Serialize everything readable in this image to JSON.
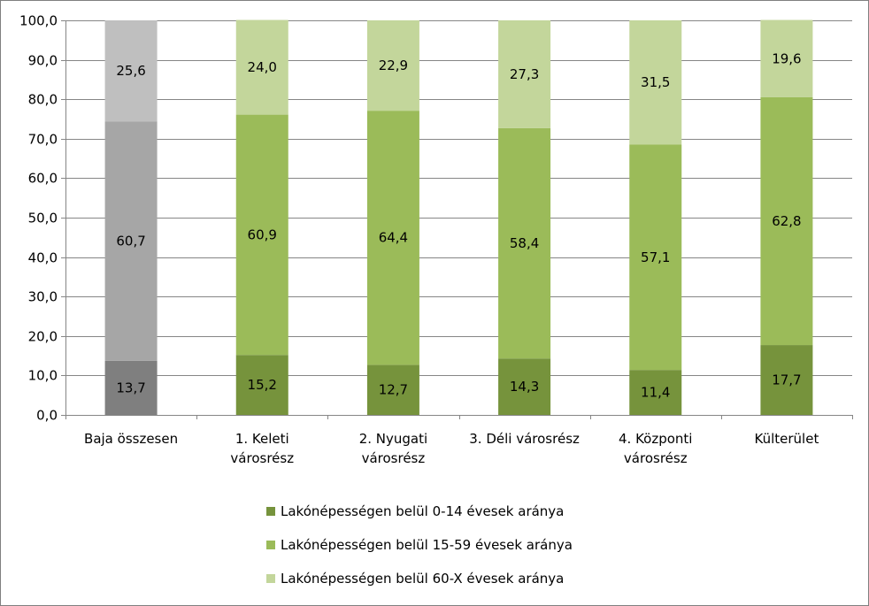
{
  "chart_data": {
    "type": "bar",
    "stacked": true,
    "title": "",
    "xlabel": "",
    "ylabel": "",
    "ylim": [
      0,
      100
    ],
    "y_ticks": [
      "0,0",
      "10,0",
      "20,0",
      "30,0",
      "40,0",
      "50,0",
      "60,0",
      "70,0",
      "80,0",
      "90,0",
      "100,0"
    ],
    "grid": true,
    "legend_position": "bottom",
    "categories": [
      [
        "Baja összesen"
      ],
      [
        "1. Keleti",
        "városrész"
      ],
      [
        "2. Nyugati",
        "városrész"
      ],
      [
        "3. Déli városrész"
      ],
      [
        "4. Központi",
        "városrész"
      ],
      [
        "Külterület"
      ]
    ],
    "series": [
      {
        "name": "Lakónépességen belül 0-14 évesek aránya",
        "values": [
          13.7,
          15.2,
          12.7,
          14.3,
          11.4,
          17.7
        ],
        "labels": [
          "13,7",
          "15,2",
          "12,7",
          "14,3",
          "11,4",
          "17,7"
        ],
        "color": "#76933c",
        "first_bar_color": "#7f7f7f"
      },
      {
        "name": "Lakónépességen belül 15-59 évesek aránya",
        "values": [
          60.7,
          60.9,
          64.4,
          58.4,
          57.1,
          62.8
        ],
        "labels": [
          "60,7",
          "60,9",
          "64,4",
          "58,4",
          "57,1",
          "62,8"
        ],
        "color": "#9bbb59",
        "first_bar_color": "#a6a6a6"
      },
      {
        "name": "Lakónépességen belül 60-X évesek aránya",
        "values": [
          25.6,
          24.0,
          22.9,
          27.3,
          31.5,
          19.6
        ],
        "labels": [
          "25,6",
          "24,0",
          "22,9",
          "27,3",
          "31,5",
          "19,6"
        ],
        "color": "#c3d69b",
        "first_bar_color": "#bfbfbf"
      }
    ]
  }
}
